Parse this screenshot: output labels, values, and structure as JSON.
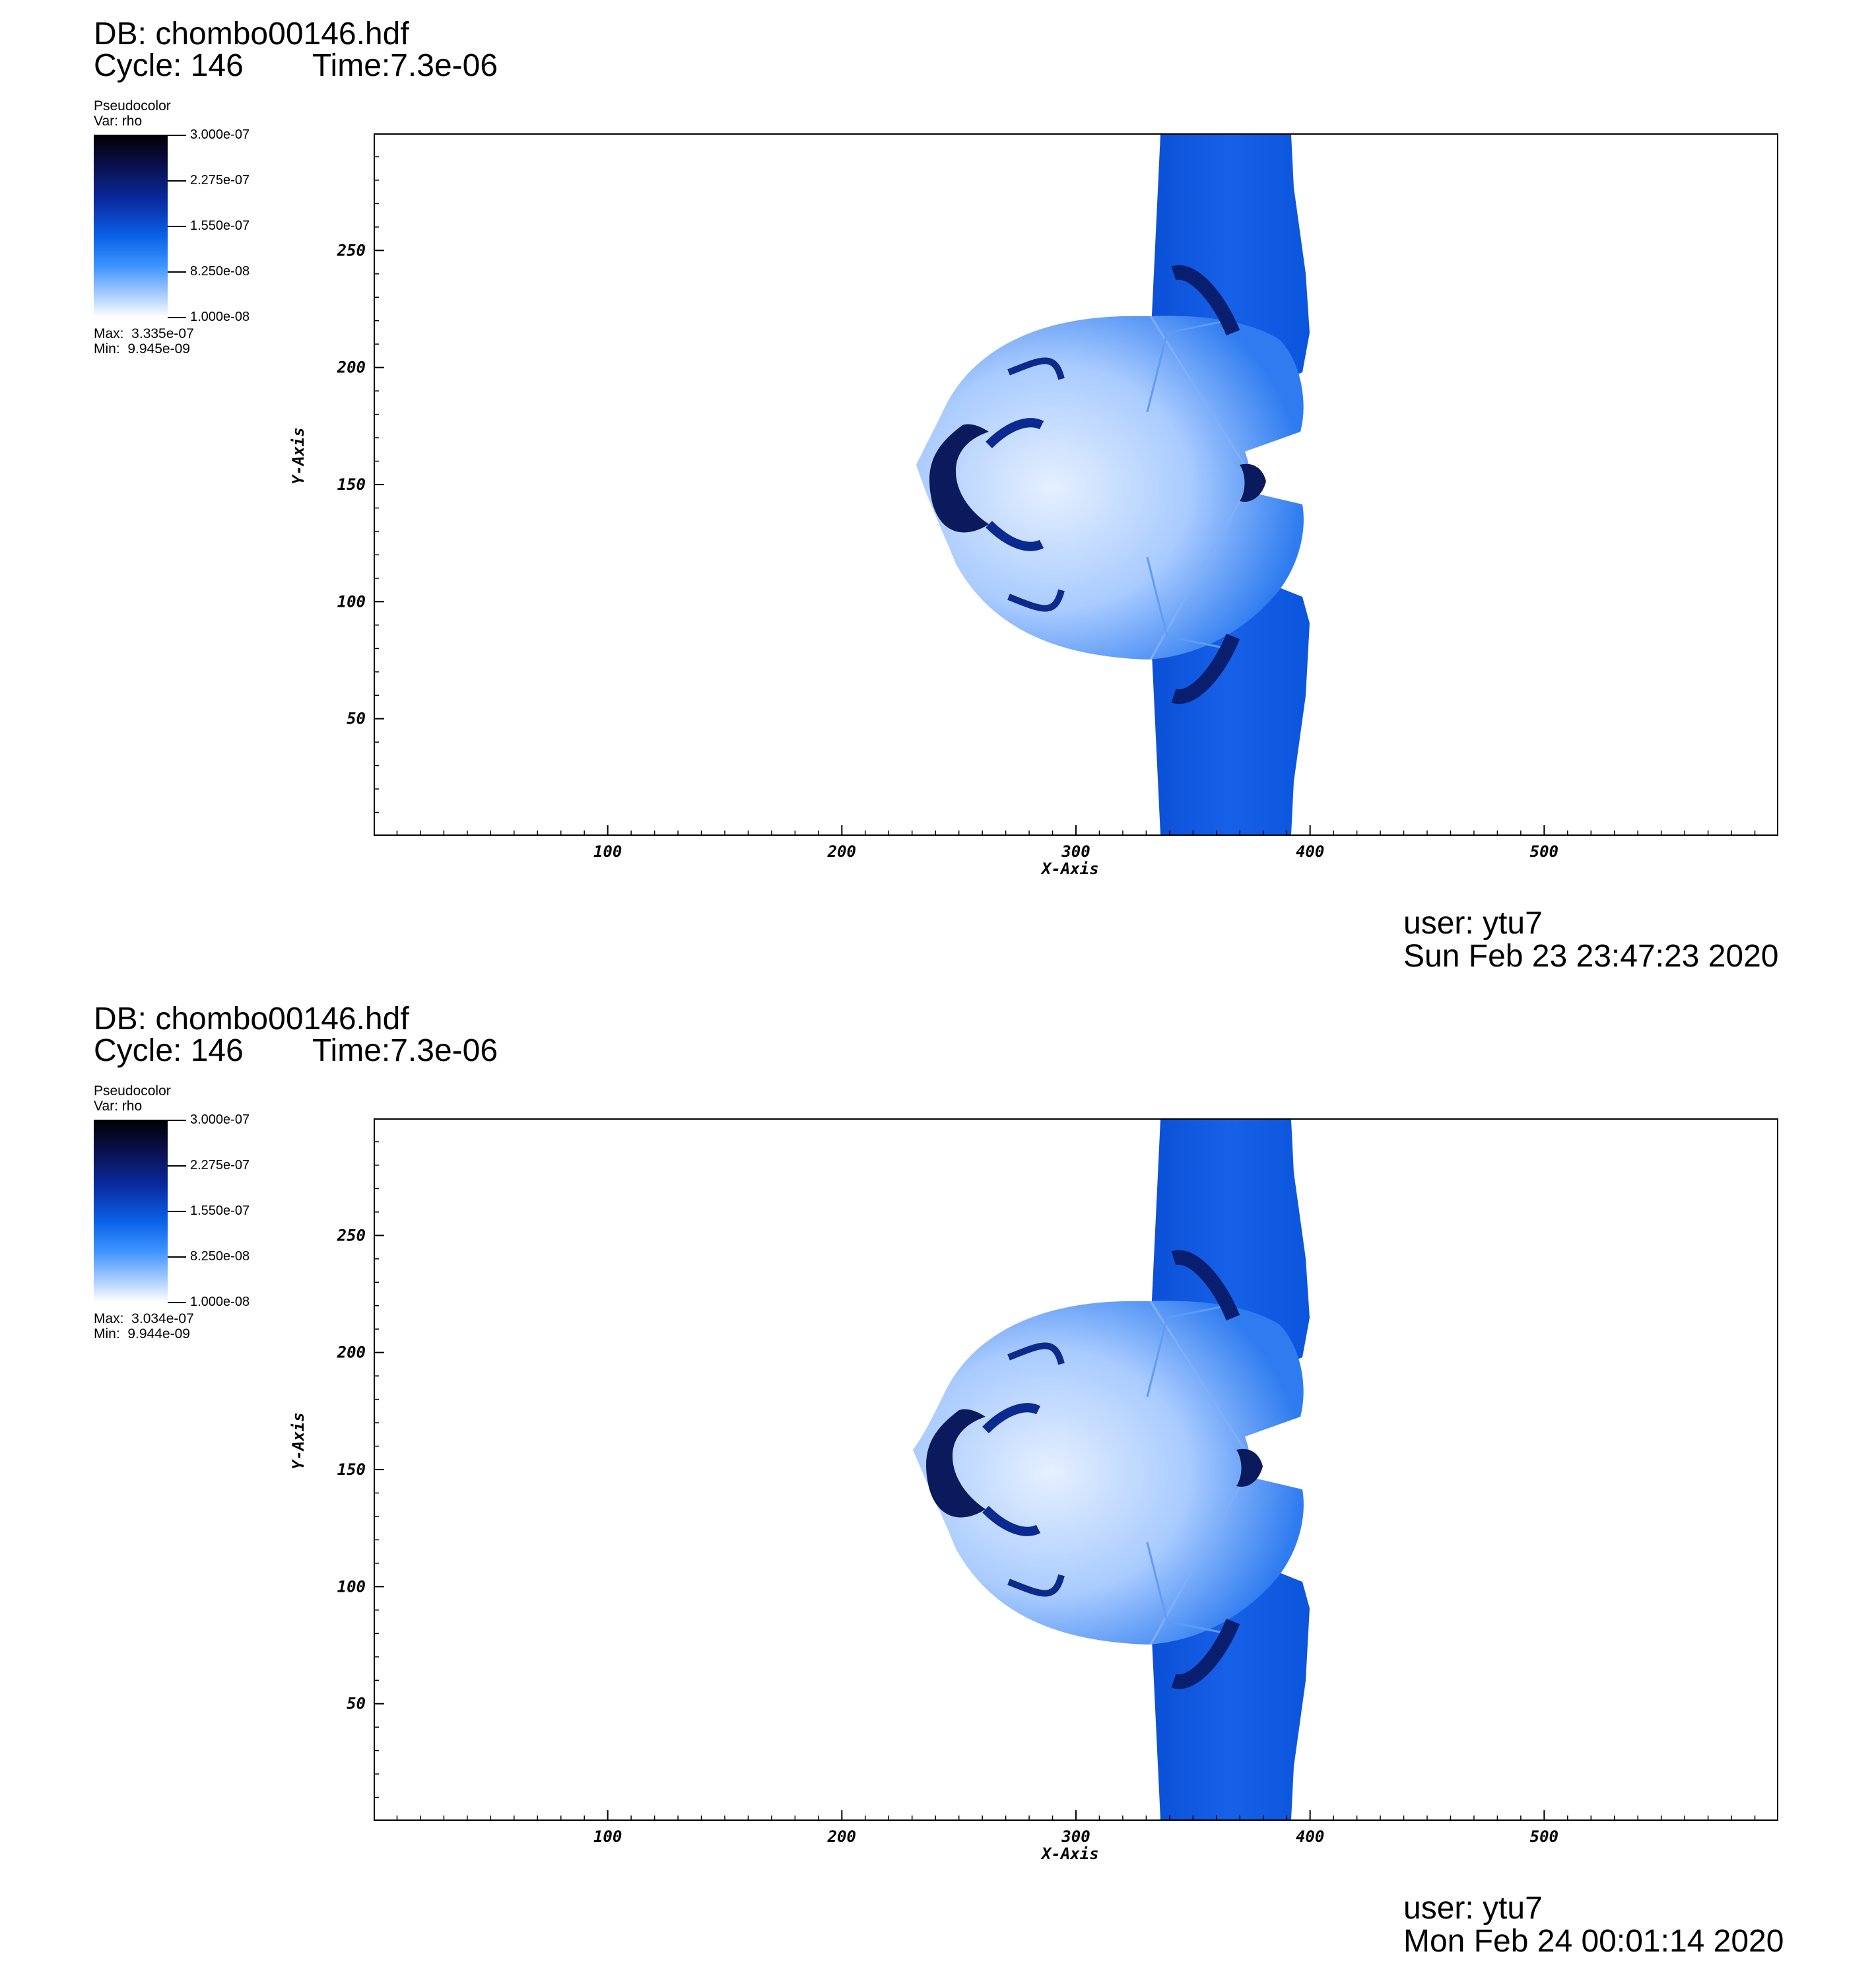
{
  "panels": [
    {
      "db": "DB: chombo00146.hdf",
      "cycle": "Cycle: 146",
      "time": "Time:7.3e-06",
      "legend": {
        "title": "Pseudocolor",
        "var": "Var: rho",
        "ticks": [
          "3.000e-07",
          "2.275e-07",
          "1.550e-07",
          "8.250e-08",
          "1.000e-08"
        ],
        "max": "Max:  3.335e-07",
        "min": "Min:  9.945e-09"
      },
      "user": "user: ytu7",
      "date": "Sun Feb 23 23:47:23 2020"
    },
    {
      "db": "DB: chombo00146.hdf",
      "cycle": "Cycle: 146",
      "time": "Time:7.3e-06",
      "legend": {
        "title": "Pseudocolor",
        "var": "Var: rho",
        "ticks": [
          "3.000e-07",
          "2.275e-07",
          "1.550e-07",
          "8.250e-08",
          "1.000e-08"
        ],
        "max": "Max:  3.034e-07",
        "min": "Min:  9.944e-09"
      },
      "user": "user: ytu7",
      "date": "Mon Feb 24 00:01:14 2020"
    }
  ],
  "chart_data": [
    {
      "type": "heatmap",
      "variable": "rho",
      "colormap": [
        "#ffffff",
        "#3d93ff",
        "#0a62e8",
        "#0a2aa0",
        "#000000"
      ],
      "colorbar_range": [
        1e-08,
        3e-07
      ],
      "xlabel": "X-Axis",
      "ylabel": "Y-Axis",
      "xlim": [
        0,
        600
      ],
      "ylim": [
        0,
        300
      ],
      "xticks": [
        100,
        200,
        300,
        400,
        500
      ],
      "yticks": [
        50,
        100,
        150,
        200,
        250
      ],
      "grid": false
    },
    {
      "type": "heatmap",
      "variable": "rho",
      "colormap": [
        "#ffffff",
        "#3d93ff",
        "#0a62e8",
        "#0a2aa0",
        "#000000"
      ],
      "colorbar_range": [
        1e-08,
        3e-07
      ],
      "xlabel": "X-Axis",
      "ylabel": "Y-Axis",
      "xlim": [
        0,
        600
      ],
      "ylim": [
        0,
        300
      ],
      "xticks": [
        100,
        200,
        300,
        400,
        500
      ],
      "yticks": [
        50,
        100,
        150,
        200,
        250
      ],
      "grid": false
    }
  ]
}
